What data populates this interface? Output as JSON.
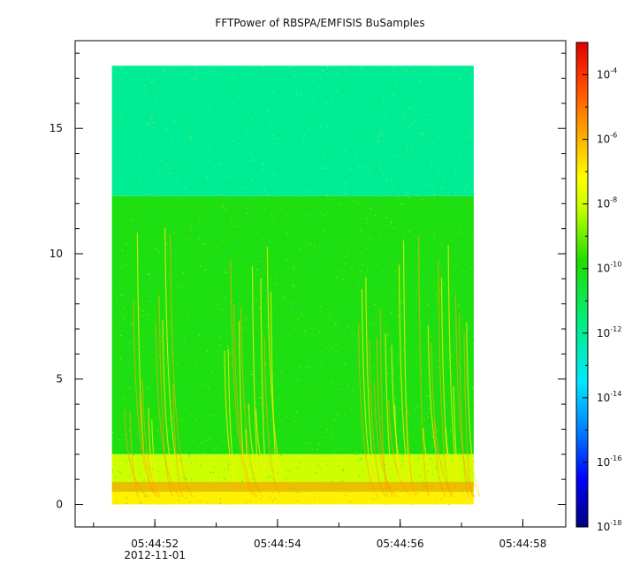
{
  "chart_data": {
    "type": "heatmap",
    "title": "FFTPower of RBSPA/EMFISIS  BuSamples",
    "xlabel": "",
    "ylabel": "",
    "x_ticks": [
      {
        "time": "05:44:52",
        "sublabel": "2012-11-01"
      },
      {
        "time": "05:44:54",
        "sublabel": ""
      },
      {
        "time": "05:44:56",
        "sublabel": ""
      },
      {
        "time": "05:44:58",
        "sublabel": ""
      }
    ],
    "xlim": [
      "05:44:50.7",
      "05:44:58.7"
    ],
    "data_time_range": [
      "05:44:51.3",
      "05:44:57.2"
    ],
    "y_ticks": [
      0,
      5,
      10,
      15
    ],
    "ylim": [
      -0.9,
      18.5
    ],
    "data_freq_range": [
      0,
      17.5
    ],
    "colorbar": {
      "scale": "log",
      "range": [
        1e-18,
        0.001
      ],
      "colormap": "rainbow",
      "tick_labels": [
        {
          "base": "10",
          "exp": "-4",
          "value": 0.0001
        },
        {
          "base": "10",
          "exp": "-6",
          "value": 1e-06
        },
        {
          "base": "10",
          "exp": "-8",
          "value": 1e-08
        },
        {
          "base": "10",
          "exp": "-10",
          "value": 1e-10
        },
        {
          "base": "10",
          "exp": "-12",
          "value": 1e-12
        },
        {
          "base": "10",
          "exp": "-14",
          "value": 1e-14
        },
        {
          "base": "10",
          "exp": "-16",
          "value": 1e-16
        },
        {
          "base": "10",
          "exp": "-18",
          "value": 1e-18
        }
      ]
    },
    "regions": [
      {
        "freq_range": [
          12.3,
          17.5
        ],
        "power": 1e-12
      },
      {
        "freq_range": [
          2,
          12.3
        ],
        "power": 1e-10
      },
      {
        "freq_range": [
          0.5,
          2
        ],
        "power": 1e-08
      },
      {
        "freq_range": [
          0,
          0.5
        ],
        "power": 1e-07
      }
    ],
    "chorus_elements_start_times": [
      "05:44:51.5",
      "05:44:53.1",
      "05:44:55.3",
      "05:44:56.3"
    ],
    "grid": false
  }
}
